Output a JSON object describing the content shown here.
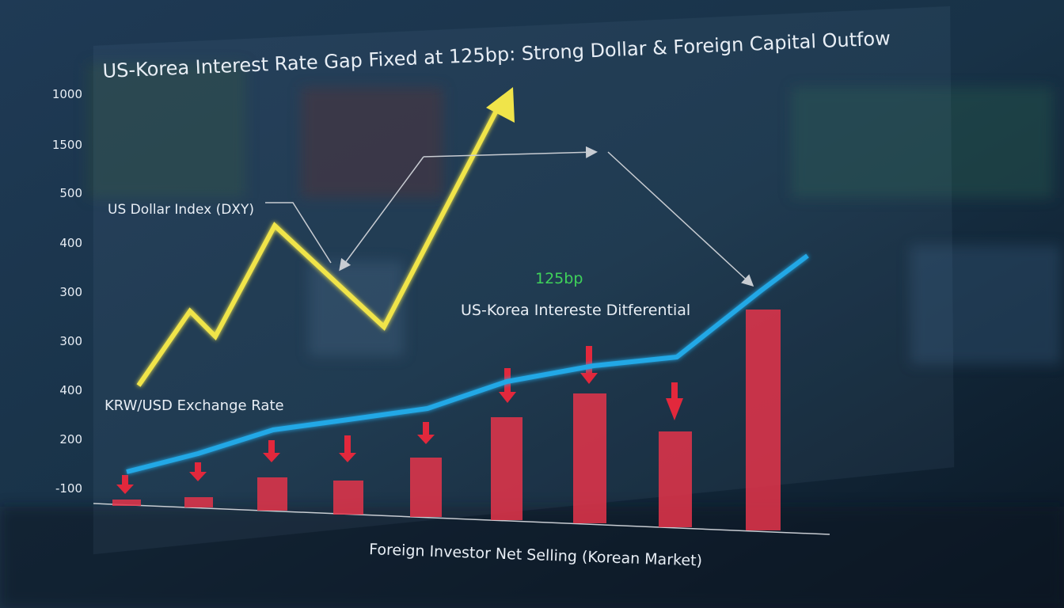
{
  "title": "US-Korea Interest Rate Gap Fixed at 125bp: Strong Dollar & Foreign Capital Outfow",
  "y_axis_labels": [
    "1000",
    "1500",
    "500",
    "400",
    "300",
    "300",
    "400",
    "200",
    "-100"
  ],
  "annotations": {
    "dxy": "US Dollar Index (DXY)",
    "gap": "125bp",
    "differential": "US-Korea Intereste Ditferential",
    "krw": "KRW/USD Exchange Rate"
  },
  "x_axis_label": "Foreign Investor Net Selling (Korean Market)"
}
